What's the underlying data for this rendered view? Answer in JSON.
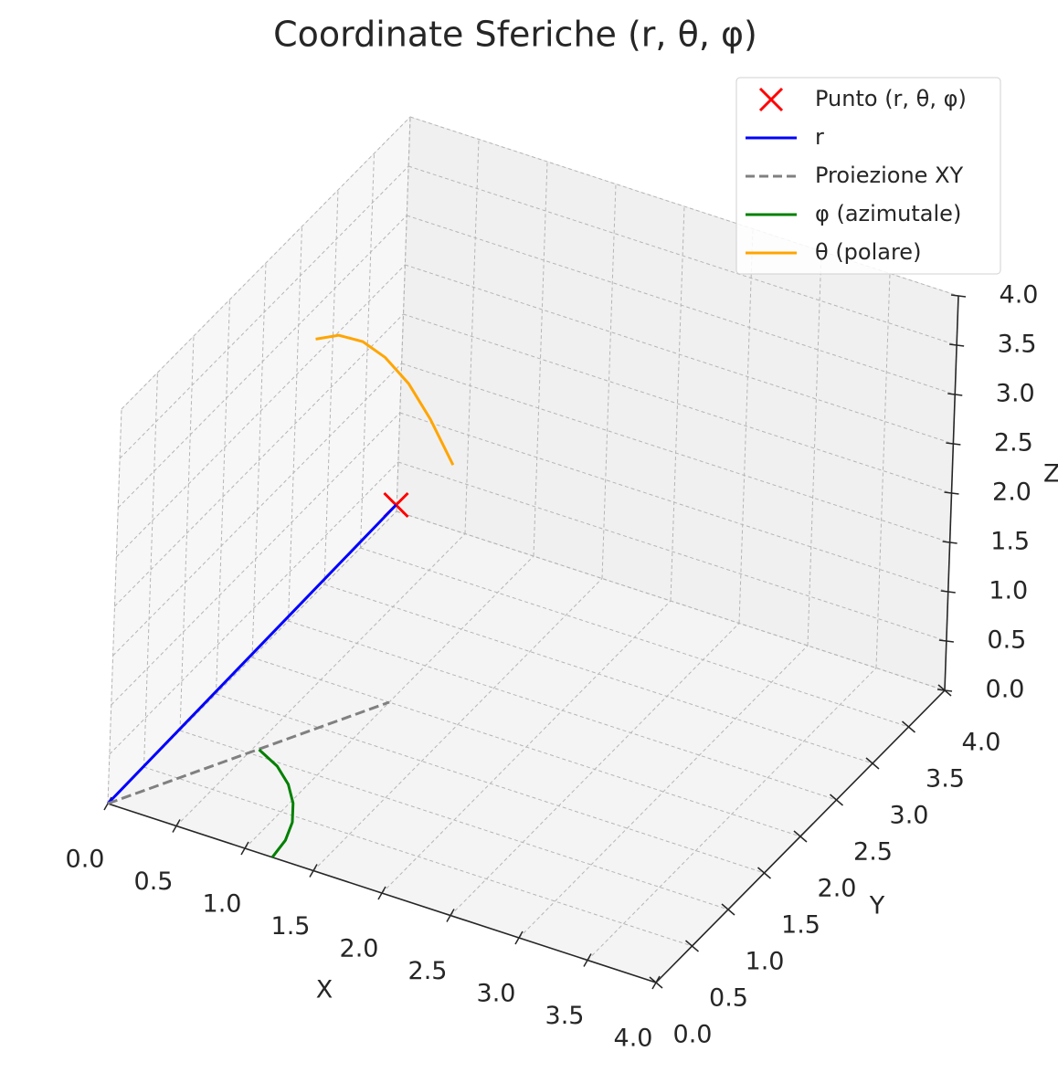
{
  "chart_data": {
    "type": "3d",
    "title": "Coordinate Sferiche (r, θ, φ)",
    "xlabel": "X",
    "ylabel": "Y",
    "zlabel": "Z",
    "xlim": [
      0,
      4
    ],
    "ylim": [
      0,
      4
    ],
    "zlim": [
      0,
      4
    ],
    "xticks": [
      {
        "value": 0,
        "label": "0.0"
      },
      {
        "value": 0.5,
        "label": "0.5"
      },
      {
        "value": 1,
        "label": "1.0"
      },
      {
        "value": 1.5,
        "label": "1.5"
      },
      {
        "value": 2,
        "label": "2.0"
      },
      {
        "value": 2.5,
        "label": "2.5"
      },
      {
        "value": 3,
        "label": "3.0"
      },
      {
        "value": 3.5,
        "label": "3.5"
      },
      {
        "value": 4,
        "label": "4.0"
      }
    ],
    "yticks": [
      {
        "value": 0,
        "label": "0.0"
      },
      {
        "value": 0.5,
        "label": "0.5"
      },
      {
        "value": 1,
        "label": "1.0"
      },
      {
        "value": 1.5,
        "label": "1.5"
      },
      {
        "value": 2,
        "label": "2.0"
      },
      {
        "value": 2.5,
        "label": "2.5"
      },
      {
        "value": 3,
        "label": "3.0"
      },
      {
        "value": 3.5,
        "label": "3.5"
      },
      {
        "value": 4,
        "label": "4.0"
      }
    ],
    "zticks": [
      {
        "value": 0,
        "label": "0.0"
      },
      {
        "value": 0.5,
        "label": "0.5"
      },
      {
        "value": 1,
        "label": "1.0"
      },
      {
        "value": 1.5,
        "label": "1.5"
      },
      {
        "value": 2,
        "label": "2.0"
      },
      {
        "value": 2.5,
        "label": "2.5"
      },
      {
        "value": 3,
        "label": "3.0"
      },
      {
        "value": 3.5,
        "label": "3.5"
      },
      {
        "value": 4,
        "label": "4.0"
      }
    ],
    "grid": true,
    "legend": "upper right",
    "series": [
      {
        "name": "Punto (r, θ, φ)",
        "kind": "scatter",
        "color": "#ff0000",
        "x": [
          1
        ],
        "y": [
          2
        ],
        "z": [
          2
        ]
      },
      {
        "name": "r",
        "kind": "line",
        "color": "#0000ff",
        "x": [
          0,
          1
        ],
        "y": [
          0,
          2
        ],
        "z": [
          0,
          2
        ]
      },
      {
        "name": "Proiezione XY",
        "kind": "dashed",
        "color": "#808080",
        "x": [
          0,
          1
        ],
        "y": [
          0,
          2
        ],
        "z": [
          0,
          0
        ]
      },
      {
        "name": "φ (azimutale)",
        "kind": "line",
        "color": "#008000",
        "x": [
          1.2,
          1.18,
          1.12,
          1.02,
          0.89,
          0.73,
          0.54
        ],
        "y": [
          0,
          0.22,
          0.43,
          0.63,
          0.81,
          0.96,
          1.07
        ],
        "z": [
          0,
          0,
          0,
          0,
          0,
          0,
          0
        ]
      },
      {
        "name": "θ (polare)",
        "kind": "line",
        "color": "#ffa500",
        "x": [
          0.69,
          0.77,
          0.86,
          0.94,
          1.03,
          1.11,
          1.2
        ],
        "y": [
          1.38,
          1.55,
          1.72,
          1.89,
          2.06,
          2.23,
          2.4
        ],
        "z": [
          4.0,
          3.95,
          3.8,
          3.55,
          3.2,
          2.75,
          2.2
        ]
      }
    ]
  }
}
